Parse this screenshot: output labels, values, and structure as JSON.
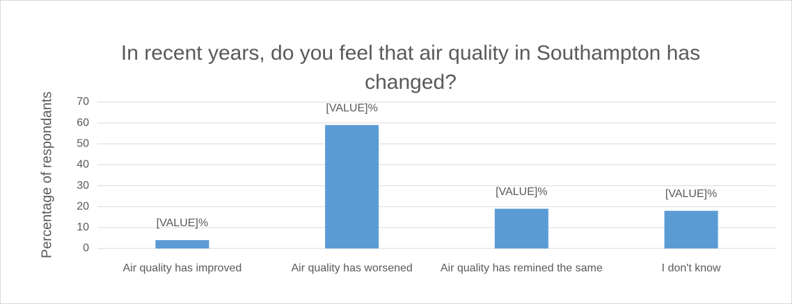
{
  "chart_data": {
    "type": "bar",
    "title": "In recent years, do you feel that air quality in Southampton has changed?",
    "ylabel": "Percentage of respondants",
    "categories": [
      "Air quality has improved",
      "Air quality has worsened",
      "Air quality has remined the same",
      "I don't know"
    ],
    "values": [
      4,
      59,
      19,
      18
    ],
    "value_labels": [
      "[VALUE]%",
      "[VALUE]%",
      "[VALUE]%",
      "[VALUE]%"
    ],
    "color": "#5b9bd5",
    "ylim": [
      0,
      70
    ],
    "yticks": [
      0,
      10,
      20,
      30,
      40,
      50,
      60,
      70
    ],
    "grid": true
  }
}
